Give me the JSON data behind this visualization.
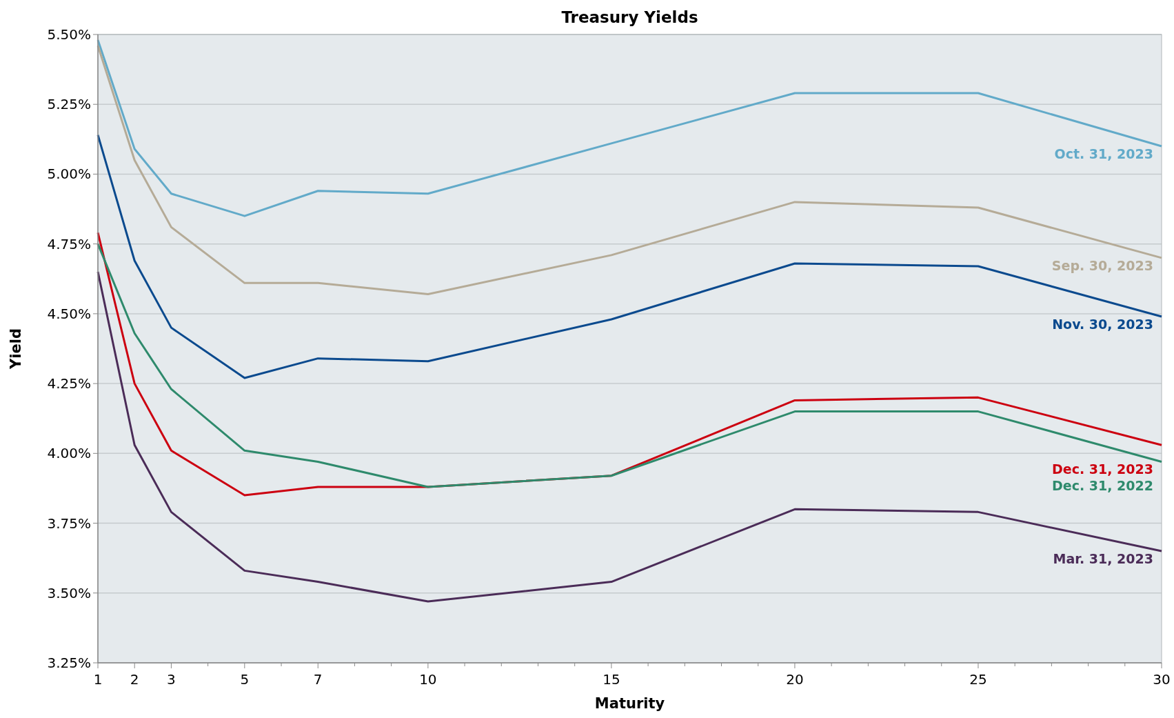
{
  "chart_data": {
    "type": "line",
    "title": "Treasury Yields",
    "xlabel": "Maturity",
    "ylabel": "Yield",
    "x": [
      1,
      2,
      3,
      5,
      7,
      10,
      15,
      20,
      25,
      30
    ],
    "series": [
      {
        "name": "Oct. 31, 2023",
        "color": "#62aac9",
        "values": [
          5.48,
          5.09,
          4.93,
          4.85,
          4.94,
          4.93,
          5.11,
          5.29,
          5.29,
          5.1
        ]
      },
      {
        "name": "Sep. 30, 2023",
        "color": "#b5ab97",
        "values": [
          5.46,
          5.05,
          4.81,
          4.61,
          4.61,
          4.57,
          4.71,
          4.9,
          4.88,
          4.7
        ]
      },
      {
        "name": "Nov. 30, 2023",
        "color": "#0b4a8e",
        "values": [
          5.14,
          4.69,
          4.45,
          4.27,
          4.34,
          4.33,
          4.48,
          4.68,
          4.67,
          4.49
        ]
      },
      {
        "name": "Dec. 31, 2023",
        "color": "#cc0010",
        "values": [
          4.79,
          4.25,
          4.01,
          3.85,
          3.88,
          3.88,
          3.92,
          4.19,
          4.2,
          4.03
        ]
      },
      {
        "name": "Dec. 31, 2022",
        "color": "#2e8a6c",
        "values": [
          4.75,
          4.43,
          4.23,
          4.01,
          3.97,
          3.88,
          3.92,
          4.15,
          4.15,
          3.97
        ]
      },
      {
        "name": "Mar. 31, 2023",
        "color": "#4b2c58",
        "values": [
          4.65,
          4.03,
          3.79,
          3.58,
          3.54,
          3.47,
          3.54,
          3.8,
          3.79,
          3.65
        ]
      }
    ],
    "xlim": [
      1,
      30
    ],
    "xticks": [
      1,
      2,
      3,
      {
        "value": 4,
        "label": null
      },
      5,
      {
        "value": 6,
        "label": null
      },
      7,
      {
        "value": 8,
        "label": null
      },
      {
        "value": 9,
        "label": null
      },
      10,
      {
        "value": 11,
        "label": null
      },
      {
        "value": 12,
        "label": null
      },
      {
        "value": 13,
        "label": null
      },
      {
        "value": 14,
        "label": null
      },
      15,
      {
        "value": 16,
        "label": null
      },
      {
        "value": 17,
        "label": null
      },
      {
        "value": 18,
        "label": null
      },
      {
        "value": 19,
        "label": null
      },
      20,
      {
        "value": 21,
        "label": null
      },
      {
        "value": 22,
        "label": null
      },
      {
        "value": 23,
        "label": null
      },
      {
        "value": 24,
        "label": null
      },
      25,
      {
        "value": 26,
        "label": null
      },
      {
        "value": 27,
        "label": null
      },
      {
        "value": 28,
        "label": null
      },
      {
        "value": 29,
        "label": null
      },
      30
    ],
    "ylim": [
      3.25,
      5.5
    ],
    "yticks": [
      {
        "value": 3.25,
        "label": "3.25%"
      },
      {
        "value": 3.5,
        "label": "3.50%"
      },
      {
        "value": 3.75,
        "label": "3.75%"
      },
      {
        "value": 4,
        "label": "4.00%"
      },
      {
        "value": 4.25,
        "label": "4.25%"
      },
      {
        "value": 4.5,
        "label": "4.50%"
      },
      {
        "value": 4.75,
        "label": "4.75%"
      },
      {
        "value": 5,
        "label": "5.00%"
      },
      {
        "value": 5.25,
        "label": "5.25%"
      },
      {
        "value": 5.5,
        "label": "5.50%"
      }
    ],
    "grid": "y",
    "marker": "none",
    "line_style": "solid"
  }
}
